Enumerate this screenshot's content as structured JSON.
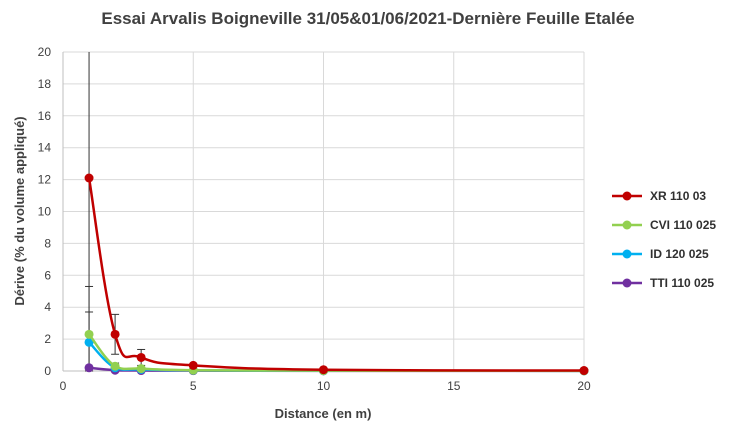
{
  "chart_data": {
    "type": "line",
    "title": "Essai Arvalis Boigneville 31/05&01/06/2021-Dernière Feuille Etalée",
    "xlabel": "Distance (en m)",
    "ylabel": "Dérive (% du volume appliqué)",
    "xlim": [
      0,
      20
    ],
    "ylim": [
      0,
      20
    ],
    "xticks": [
      0,
      5,
      10,
      15,
      20
    ],
    "yticks": [
      0,
      2,
      4,
      6,
      8,
      10,
      12,
      14,
      16,
      18,
      20
    ],
    "grid": true,
    "legend_position": "right",
    "series": [
      {
        "name": "XR 110 03",
        "color": "#c00000",
        "x": [
          1,
          2,
          3,
          5,
          10,
          20
        ],
        "y": [
          12.1,
          2.3,
          0.85,
          0.35,
          0.08,
          0.03
        ],
        "error": [
          15.0,
          1.25,
          0.5,
          0.0,
          0.0,
          0.0
        ]
      },
      {
        "name": "CVI 110 025",
        "color": "#92d050",
        "x": [
          1,
          2,
          3,
          5,
          10,
          20
        ],
        "y": [
          2.3,
          0.3,
          0.15,
          0.05,
          0.02,
          0.01
        ],
        "error": [
          3.0,
          0.2,
          0.0,
          0.0,
          0.0,
          0.0
        ]
      },
      {
        "name": "ID 120 025",
        "color": "#00b0f0",
        "x": [
          1,
          2,
          3,
          5,
          10,
          20
        ],
        "y": [
          1.8,
          0.2,
          0.1,
          0.04,
          0.02,
          0.01
        ],
        "error": [
          1.9,
          0.15,
          0.0,
          0.0,
          0.0,
          0.0
        ]
      },
      {
        "name": "TTI 110 025",
        "color": "#7030a0",
        "x": [
          1,
          2,
          3,
          5,
          10,
          20
        ],
        "y": [
          0.2,
          0.05,
          0.03,
          0.02,
          0.01,
          0.01
        ],
        "error": [
          0.0,
          0.0,
          0.0,
          0.0,
          0.0,
          0.0
        ]
      }
    ]
  }
}
